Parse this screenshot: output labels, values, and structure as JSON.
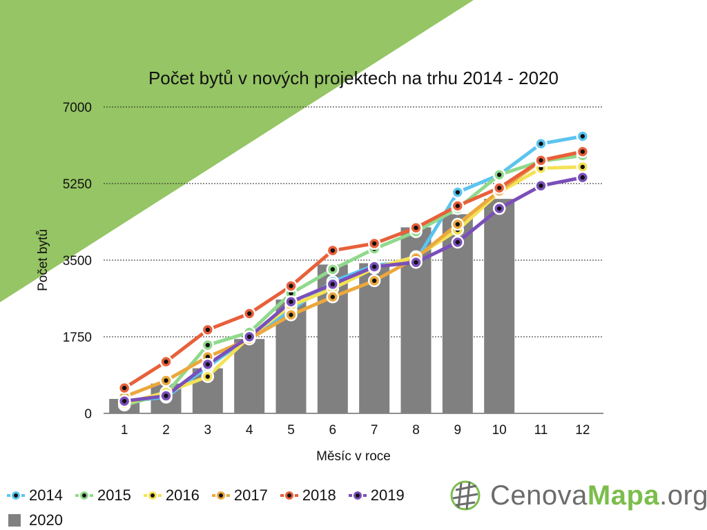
{
  "chart_data": {
    "type": "line",
    "title": "Počet bytů v nových projektech na trhu 2014 - 2020",
    "xlabel": "Měsíc v roce",
    "ylabel": "Počet bytů",
    "categories": [
      "1",
      "2",
      "3",
      "4",
      "5",
      "6",
      "7",
      "8",
      "9",
      "10",
      "11",
      "12"
    ],
    "y_ticks": [
      "0",
      "1750",
      "3500",
      "5250",
      "7000"
    ],
    "ylim": [
      0,
      7000
    ],
    "grid": "horizontal dotted",
    "legend_position": "bottom-left",
    "bar_series": {
      "name": "2020",
      "color": "#808080",
      "values": [
        330,
        680,
        1030,
        1700,
        2600,
        3400,
        3430,
        4250,
        4550,
        4900,
        null,
        null
      ]
    },
    "series": [
      {
        "name": "2014",
        "color": "#5bc4ee",
        "values": [
          270,
          370,
          1060,
          1750,
          2360,
          3010,
          3380,
          3490,
          5050,
          5450,
          6160,
          6330
        ]
      },
      {
        "name": "2015",
        "color": "#90d98c",
        "values": [
          190,
          450,
          1560,
          1850,
          2740,
          3290,
          3760,
          4150,
          4680,
          5450,
          5760,
          5890
        ]
      },
      {
        "name": "2016",
        "color": "#f4e256",
        "values": [
          230,
          480,
          840,
          1750,
          2460,
          2850,
          3320,
          3580,
          4190,
          5050,
          5600,
          5630
        ]
      },
      {
        "name": "2017",
        "color": "#eba83e",
        "values": [
          380,
          750,
          1290,
          1700,
          2250,
          2660,
          3030,
          3550,
          4320,
          5080,
          5770,
          5980
        ]
      },
      {
        "name": "2018",
        "color": "#e8603a",
        "values": [
          580,
          1180,
          1910,
          2280,
          2910,
          3720,
          3880,
          4240,
          4740,
          5150,
          5780,
          5980
        ]
      },
      {
        "name": "2019",
        "color": "#7a4fba",
        "values": [
          280,
          400,
          1120,
          1750,
          2550,
          2950,
          3350,
          3450,
          3910,
          4680,
          5200,
          5390
        ]
      }
    ]
  },
  "logo": {
    "part1": "Cenova",
    "part2": "Mapa",
    "part3": ".org"
  }
}
